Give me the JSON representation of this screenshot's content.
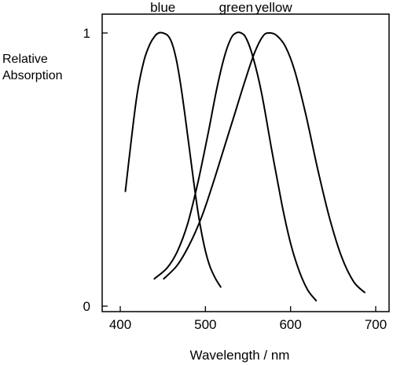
{
  "chart_data": {
    "type": "line",
    "title": "",
    "xlabel": "Wavelength / nm",
    "ylabel_lines": [
      "Relative",
      "Absorption"
    ],
    "xlim": [
      375,
      715
    ],
    "ylim": [
      0,
      1
    ],
    "xticks": [
      400,
      500,
      600,
      700
    ],
    "yticks": [
      0,
      1
    ],
    "grid": false,
    "legend": "none",
    "series": [
      {
        "name": "blue",
        "color": "#000000",
        "x": [
          406,
          413,
          420,
          428,
          435,
          441,
          445,
          450,
          456,
          461,
          466,
          471,
          476,
          481,
          486,
          491,
          496,
          501,
          506,
          512,
          518
        ],
        "y": [
          0.42,
          0.61,
          0.78,
          0.9,
          0.96,
          0.99,
          1.0,
          1.0,
          0.99,
          0.96,
          0.9,
          0.81,
          0.7,
          0.58,
          0.46,
          0.35,
          0.26,
          0.19,
          0.14,
          0.1,
          0.07
        ]
      },
      {
        "name": "green",
        "color": "#000000",
        "x": [
          440,
          455,
          467,
          479,
          491,
          503,
          513,
          522,
          530,
          536,
          542,
          548,
          556,
          566,
          578,
          590,
          600,
          610,
          620,
          630
        ],
        "y": [
          0.1,
          0.14,
          0.2,
          0.3,
          0.45,
          0.63,
          0.79,
          0.91,
          0.98,
          1.0,
          1.0,
          0.98,
          0.91,
          0.78,
          0.57,
          0.37,
          0.23,
          0.13,
          0.06,
          0.02
        ]
      },
      {
        "name": "yellow",
        "color": "#000000",
        "x": [
          451,
          467,
          482,
          496,
          509,
          522,
          535,
          547,
          558,
          568,
          576,
          584,
          594,
          605,
          618,
          632,
          646,
          660,
          674,
          687
        ],
        "y": [
          0.1,
          0.15,
          0.23,
          0.33,
          0.45,
          0.58,
          0.71,
          0.83,
          0.93,
          0.99,
          1.0,
          0.99,
          0.95,
          0.86,
          0.7,
          0.5,
          0.32,
          0.18,
          0.09,
          0.05
        ]
      }
    ],
    "annotations": [
      {
        "text": "blue",
        "x": 450
      },
      {
        "text": "green",
        "x": 536
      },
      {
        "text": "yellow",
        "x": 580
      }
    ]
  }
}
